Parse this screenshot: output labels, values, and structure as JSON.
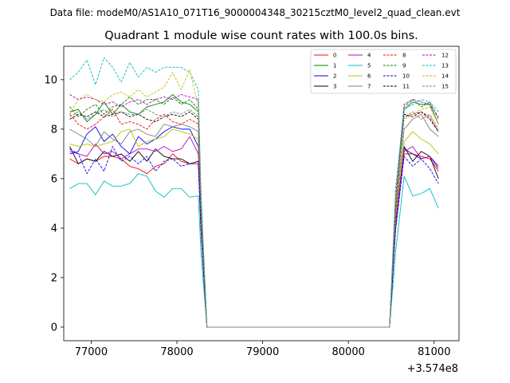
{
  "suptitle": "Data file: modeM0/AS1A10_071T16_9000004348_30215cztM0_level2_quad_clean.evt",
  "chart_data": {
    "type": "line",
    "title": "Quadrant 1 module wise count rates with 100.0s bins.",
    "xlabel": "",
    "ylabel": "",
    "x_offset_label": "+3.574e8",
    "xlim": [
      76680,
      81290
    ],
    "ylim": [
      -0.55,
      11.35
    ],
    "xticks": [
      77000,
      78000,
      79000,
      80000,
      81000
    ],
    "xtick_labels": [
      "77000",
      "78000",
      "79000",
      "80000",
      "81000"
    ],
    "yticks": [
      0,
      2,
      4,
      6,
      8,
      10
    ],
    "ytick_labels": [
      "0",
      "2",
      "4",
      "6",
      "8",
      "10"
    ],
    "grid": false,
    "legend_position": "top-right",
    "x": [
      76750,
      76850,
      76950,
      77050,
      77150,
      77250,
      77350,
      77450,
      77550,
      77650,
      77750,
      77850,
      77950,
      78050,
      78150,
      78250,
      78280,
      78350,
      80450,
      80480,
      80550,
      80650,
      80750,
      80850,
      80950,
      81050
    ],
    "series": [
      {
        "name": "0",
        "color": "#ff0000",
        "dash": false,
        "values": [
          6.8,
          6.6,
          6.8,
          6.7,
          6.9,
          6.9,
          6.8,
          6.5,
          6.4,
          6.2,
          6.5,
          6.6,
          7.0,
          6.7,
          6.6,
          6.6,
          4.0,
          0.0,
          0.0,
          0.0,
          4.0,
          7.0,
          7.0,
          6.9,
          6.8,
          6.3
        ]
      },
      {
        "name": "1",
        "color": "#008000",
        "dash": false,
        "values": [
          8.7,
          8.8,
          8.3,
          8.6,
          9.1,
          8.6,
          9.0,
          8.7,
          8.6,
          8.9,
          9.0,
          9.1,
          9.4,
          9.1,
          9.0,
          8.7,
          5.0,
          0.0,
          0.0,
          0.0,
          5.0,
          8.8,
          9.1,
          9.0,
          9.0,
          8.2
        ]
      },
      {
        "name": "2",
        "color": "#0000ff",
        "dash": false,
        "values": [
          7.0,
          7.1,
          7.8,
          8.1,
          7.5,
          7.8,
          7.3,
          7.0,
          7.7,
          7.4,
          7.6,
          7.9,
          8.1,
          8.0,
          8.0,
          7.3,
          4.2,
          0.0,
          0.0,
          0.0,
          4.2,
          7.2,
          7.0,
          6.8,
          6.9,
          6.5
        ]
      },
      {
        "name": "3",
        "color": "#000000",
        "dash": false,
        "values": [
          7.3,
          6.6,
          6.8,
          6.7,
          7.1,
          6.9,
          7.0,
          6.7,
          7.1,
          6.7,
          7.2,
          6.9,
          6.8,
          6.8,
          6.6,
          6.7,
          4.0,
          0.0,
          0.0,
          0.0,
          4.0,
          7.3,
          6.7,
          7.1,
          6.9,
          6.0
        ]
      },
      {
        "name": "4",
        "color": "#bf00bf",
        "dash": false,
        "values": [
          7.1,
          7.0,
          6.9,
          7.4,
          7.0,
          7.1,
          6.8,
          7.0,
          7.2,
          7.2,
          7.1,
          7.3,
          7.1,
          7.2,
          7.7,
          7.0,
          4.1,
          0.0,
          0.0,
          0.0,
          4.1,
          7.1,
          7.3,
          6.8,
          6.9,
          6.4
        ]
      },
      {
        "name": "5",
        "color": "#00bfbf",
        "dash": false,
        "values": [
          5.6,
          5.8,
          5.8,
          5.35,
          5.9,
          5.7,
          5.7,
          5.8,
          6.2,
          6.1,
          5.5,
          5.25,
          5.6,
          5.6,
          5.25,
          5.3,
          3.0,
          0.0,
          0.0,
          0.0,
          3.0,
          6.1,
          5.3,
          5.4,
          5.6,
          4.8
        ]
      },
      {
        "name": "6",
        "color": "#bfbf00",
        "dash": false,
        "values": [
          7.4,
          7.3,
          7.4,
          7.3,
          7.4,
          7.5,
          7.9,
          8.0,
          7.3,
          7.5,
          7.6,
          7.7,
          8.0,
          7.9,
          7.8,
          7.6,
          4.4,
          0.0,
          0.0,
          0.0,
          4.4,
          7.5,
          7.9,
          7.6,
          7.4,
          7.0
        ]
      },
      {
        "name": "7",
        "color": "#808080",
        "dash": false,
        "values": [
          8.0,
          7.8,
          7.6,
          7.3,
          7.9,
          7.6,
          7.4,
          7.9,
          8.0,
          7.8,
          7.7,
          8.2,
          8.1,
          8.2,
          8.1,
          7.9,
          4.5,
          0.0,
          0.0,
          0.0,
          4.5,
          8.0,
          8.4,
          8.6,
          8.0,
          7.7
        ]
      },
      {
        "name": "8",
        "color": "#ff0000",
        "dash": true,
        "values": [
          8.6,
          8.2,
          8.0,
          8.2,
          8.5,
          8.8,
          8.2,
          8.3,
          8.2,
          8.0,
          8.4,
          8.6,
          8.3,
          8.2,
          8.4,
          8.2,
          4.7,
          0.0,
          0.0,
          0.0,
          4.7,
          8.5,
          8.6,
          8.7,
          8.5,
          7.9
        ]
      },
      {
        "name": "9",
        "color": "#008000",
        "dash": true,
        "values": [
          8.9,
          8.5,
          8.8,
          9.0,
          8.6,
          8.9,
          9.0,
          9.3,
          9.0,
          9.2,
          9.2,
          9.0,
          9.3,
          9.0,
          9.2,
          8.8,
          5.0,
          0.0,
          0.0,
          0.0,
          5.0,
          8.9,
          9.2,
          8.9,
          9.1,
          8.4
        ]
      },
      {
        "name": "10",
        "color": "#0000ff",
        "dash": true,
        "values": [
          7.2,
          7.0,
          6.2,
          6.8,
          6.3,
          7.3,
          6.7,
          6.9,
          6.6,
          6.9,
          6.3,
          6.7,
          6.8,
          6.5,
          6.6,
          6.7,
          3.9,
          0.0,
          0.0,
          0.0,
          3.9,
          6.9,
          6.5,
          6.8,
          6.4,
          5.8
        ]
      },
      {
        "name": "11",
        "color": "#000000",
        "dash": true,
        "values": [
          8.4,
          8.6,
          8.5,
          8.7,
          8.5,
          8.6,
          8.7,
          8.5,
          8.6,
          8.4,
          8.3,
          8.5,
          8.6,
          8.5,
          8.7,
          8.4,
          4.8,
          0.0,
          0.0,
          0.0,
          4.8,
          8.6,
          8.5,
          8.7,
          8.4,
          7.9
        ]
      },
      {
        "name": "12",
        "color": "#bf00bf",
        "dash": true,
        "values": [
          9.4,
          9.2,
          9.3,
          9.2,
          9.0,
          9.1,
          8.9,
          9.1,
          9.2,
          9.0,
          9.2,
          9.3,
          9.2,
          9.4,
          9.3,
          9.2,
          5.3,
          0.0,
          0.0,
          0.0,
          5.3,
          9.0,
          9.2,
          9.1,
          9.0,
          8.5
        ]
      },
      {
        "name": "13",
        "color": "#00bfbf",
        "dash": true,
        "values": [
          10.0,
          10.3,
          10.8,
          9.8,
          10.9,
          10.5,
          9.9,
          10.7,
          10.1,
          10.5,
          10.3,
          10.5,
          10.5,
          10.5,
          10.3,
          9.6,
          5.6,
          0.0,
          0.0,
          0.0,
          5.6,
          8.8,
          9.0,
          9.2,
          9.1,
          8.7
        ]
      },
      {
        "name": "14",
        "color": "#bfbf00",
        "dash": true,
        "values": [
          8.6,
          9.2,
          9.4,
          9.2,
          9.1,
          9.4,
          9.5,
          9.3,
          9.6,
          9.3,
          9.5,
          9.7,
          10.3,
          9.6,
          10.4,
          8.9,
          5.1,
          0.0,
          0.0,
          0.0,
          5.1,
          8.4,
          8.6,
          8.8,
          8.9,
          8.2
        ]
      },
      {
        "name": "15",
        "color": "#808080",
        "dash": true,
        "values": [
          8.5,
          8.7,
          8.4,
          8.6,
          8.8,
          8.5,
          8.7,
          8.6,
          8.6,
          8.8,
          8.6,
          8.5,
          8.7,
          8.6,
          8.8,
          8.5,
          4.9,
          0.0,
          0.0,
          0.0,
          4.9,
          8.5,
          8.7,
          8.4,
          8.6,
          8.0
        ]
      }
    ]
  }
}
